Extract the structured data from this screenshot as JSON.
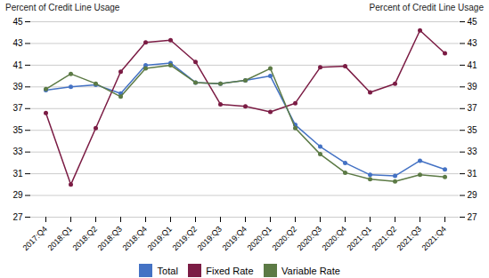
{
  "chart_data": {
    "type": "line",
    "categories": [
      "2017:Q4",
      "2018:Q1",
      "2018:Q2",
      "2018:Q3",
      "2018:Q4",
      "2019:Q1",
      "2019:Q2",
      "2019:Q3",
      "2019:Q4",
      "2020:Q1",
      "2020:Q2",
      "2020:Q3",
      "2020:Q4",
      "2021:Q1",
      "2021:Q2",
      "2021:Q3",
      "2021:Q4"
    ],
    "series": [
      {
        "name": "Total",
        "color": "#4472C4",
        "values": [
          38.7,
          39.0,
          39.2,
          38.4,
          41.0,
          41.2,
          39.4,
          39.3,
          39.6,
          40.0,
          35.5,
          33.5,
          32.0,
          30.9,
          30.8,
          32.2,
          31.4
        ]
      },
      {
        "name": "Fixed Rate",
        "color": "#7B1C44",
        "values": [
          36.6,
          30.0,
          35.2,
          40.4,
          43.1,
          43.3,
          41.3,
          37.4,
          37.2,
          36.7,
          37.5,
          40.8,
          40.9,
          38.5,
          39.3,
          44.2,
          42.1
        ]
      },
      {
        "name": "Variable Rate",
        "color": "#5C7A45",
        "values": [
          38.8,
          40.2,
          39.3,
          38.1,
          40.7,
          41.0,
          39.4,
          39.3,
          39.6,
          40.7,
          35.2,
          32.8,
          31.1,
          30.5,
          30.3,
          30.9,
          30.7
        ]
      }
    ],
    "y_label": "Percent of Credit Line Usage",
    "y2_label": "Percent of Credit Line Usage",
    "ylim": [
      27,
      45
    ],
    "yticks": [
      27,
      29,
      31,
      33,
      35,
      37,
      39,
      41,
      43,
      45
    ],
    "y2lim": [
      27,
      45
    ],
    "y2ticks": [
      27,
      29,
      31,
      33,
      35,
      37,
      39,
      41,
      43,
      45
    ],
    "grid": true,
    "legend": "bottom",
    "marker": "circle"
  }
}
